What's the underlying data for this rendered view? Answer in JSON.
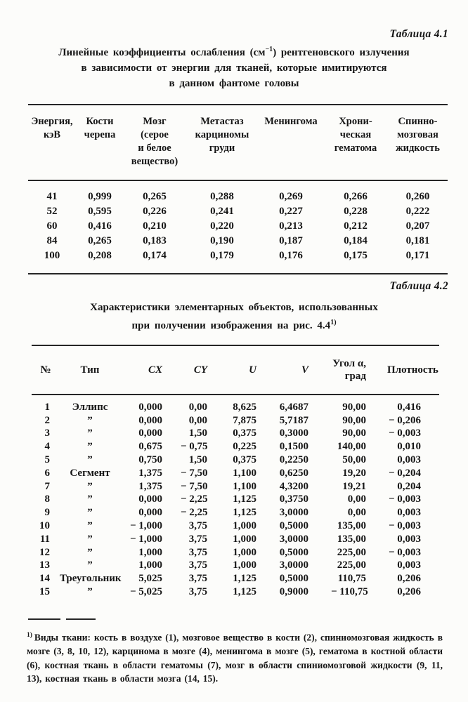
{
  "table1": {
    "caption": "Таблица 4.1",
    "title": {
      "line1_pre": "Линейные коэффициенты ослабления (см",
      "line1_sup": "−1",
      "line1_post": ") рентгеновского излучения",
      "line2": "в зависимости от энергии для тканей, которые имитируются",
      "line3": "в данном фантоме головы"
    },
    "headers": [
      "Энергия,\nкэВ",
      "Кости\nчерепа",
      "Мозг\n(серое\nи белое\nвещество)",
      "Метастаз\nкарциномы\nгруди",
      "Менингома",
      "Хрони-\nческая\nгематома",
      "Спинно-\nмозговая\nжидкость"
    ],
    "rows": [
      [
        "41",
        "0,999",
        "0,265",
        "0,288",
        "0,269",
        "0,266",
        "0,260"
      ],
      [
        "52",
        "0,595",
        "0,226",
        "0,241",
        "0,227",
        "0,228",
        "0,222"
      ],
      [
        "60",
        "0,416",
        "0,210",
        "0,220",
        "0,213",
        "0,212",
        "0,207"
      ],
      [
        "84",
        "0,265",
        "0,183",
        "0,190",
        "0,187",
        "0,184",
        "0,181"
      ],
      [
        "100",
        "0,208",
        "0,174",
        "0,179",
        "0,176",
        "0,175",
        "0,171"
      ]
    ]
  },
  "table2": {
    "caption": "Таблица 4.2",
    "title": {
      "line1": "Характеристики элементарных объектов, использованных",
      "line2_pre": "при получении изображения на рис. 4.4",
      "line2_sup": "1)"
    },
    "headers": [
      "№",
      "Тип",
      "CX",
      "CY",
      "U",
      "V",
      "Угол α,\nград",
      "Плотность"
    ],
    "rows": [
      [
        "1",
        "Эллипс",
        "0,000",
        "0,00",
        "8,625",
        "6,4687",
        "90,00",
        "0,416"
      ],
      [
        "2",
        "”",
        "0,000",
        "0,00",
        "7,875",
        "5,7187",
        "90,00",
        "− 0,206"
      ],
      [
        "3",
        "”",
        "0,000",
        "1,50",
        "0,375",
        "0,3000",
        "90,00",
        "− 0,003"
      ],
      [
        "4",
        "”",
        "0,675",
        "− 0,75",
        "0,225",
        "0,1500",
        "140,00",
        "0,010"
      ],
      [
        "5",
        "”",
        "0,750",
        "1,50",
        "0,375",
        "0,2250",
        "50,00",
        "0,003"
      ],
      [
        "6",
        "Сегмент",
        "1,375",
        "− 7,50",
        "1,100",
        "0,6250",
        "19,20",
        "− 0,204"
      ],
      [
        "7",
        "”",
        "1,375",
        "− 7,50",
        "1,100",
        "4,3200",
        "19,21",
        "0,204"
      ],
      [
        "8",
        "”",
        "0,000",
        "− 2,25",
        "1,125",
        "0,3750",
        "0,00",
        "− 0,003"
      ],
      [
        "9",
        "”",
        "0,000",
        "− 2,25",
        "1,125",
        "3,0000",
        "0,00",
        "0,003"
      ],
      [
        "10",
        "”",
        "− 1,000",
        "3,75",
        "1,000",
        "0,5000",
        "135,00",
        "− 0,003"
      ],
      [
        "11",
        "”",
        "− 1,000",
        "3,75",
        "1,000",
        "3,0000",
        "135,00",
        "0,003"
      ],
      [
        "12",
        "”",
        "1,000",
        "3,75",
        "1,000",
        "0,5000",
        "225,00",
        "− 0,003"
      ],
      [
        "13",
        "”",
        "1,000",
        "3,75",
        "1,000",
        "3,0000",
        "225,00",
        "0,003"
      ],
      [
        "14",
        "Треугольник",
        "5,025",
        "3,75",
        "1,125",
        "0,5000",
        "110,75",
        "0,206"
      ],
      [
        "15",
        "”",
        "− 5,025",
        "3,75",
        "1,125",
        "0,9000",
        "− 110,75",
        "0,206"
      ]
    ]
  },
  "footnote": {
    "marker": "1)",
    "text": "Виды ткани: кость в воздухе (1), мозговое вещество в кости (2), спиниомозговая жидкость в мозге (3, 8, 10, 12), карцинома в мозге (4), менингома в мозге (5), гематома в костной области (6), костная ткань в области гематомы (7), мозг в области спиниомозговой жидкости (9, 11, 13), костная ткань в области мозга (14, 15)."
  }
}
